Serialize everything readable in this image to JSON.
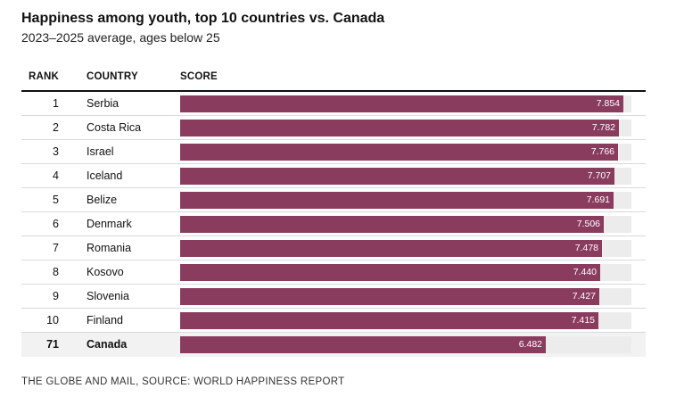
{
  "title": "Happiness among youth, top 10 countries vs. Canada",
  "subtitle": "2023–2025 average, ages below 25",
  "headers": {
    "rank": "RANK",
    "country": "COUNTRY",
    "score": "SCORE"
  },
  "source": "THE GLOBE AND MAIL, SOURCE: WORLD HAPPINESS REPORT",
  "colors": {
    "bar": "#8a3c5f",
    "track": "#ececec",
    "highlight_row": "#f2f2f2"
  },
  "chart_data": {
    "type": "bar",
    "orientation": "horizontal",
    "title": "Happiness among youth, top 10 countries vs. Canada",
    "subtitle": "2023–2025 average, ages below 25",
    "xlim": [
      0,
      8
    ],
    "rows": [
      {
        "rank": "1",
        "country": "Serbia",
        "score": 7.854,
        "label": "7.854"
      },
      {
        "rank": "2",
        "country": "Costa Rica",
        "score": 7.782,
        "label": "7.782"
      },
      {
        "rank": "3",
        "country": "Israel",
        "score": 7.766,
        "label": "7.766"
      },
      {
        "rank": "4",
        "country": "Iceland",
        "score": 7.707,
        "label": "7.707"
      },
      {
        "rank": "5",
        "country": "Belize",
        "score": 7.691,
        "label": "7.691"
      },
      {
        "rank": "6",
        "country": "Denmark",
        "score": 7.506,
        "label": "7.506"
      },
      {
        "rank": "7",
        "country": "Romania",
        "score": 7.478,
        "label": "7.478"
      },
      {
        "rank": "8",
        "country": "Kosovo",
        "score": 7.44,
        "label": "7.440"
      },
      {
        "rank": "9",
        "country": "Slovenia",
        "score": 7.427,
        "label": "7.427"
      },
      {
        "rank": "10",
        "country": "Finland",
        "score": 7.415,
        "label": "7.415"
      },
      {
        "rank": "71",
        "country": "Canada",
        "score": 6.482,
        "label": "6.482",
        "highlight": true
      }
    ]
  }
}
